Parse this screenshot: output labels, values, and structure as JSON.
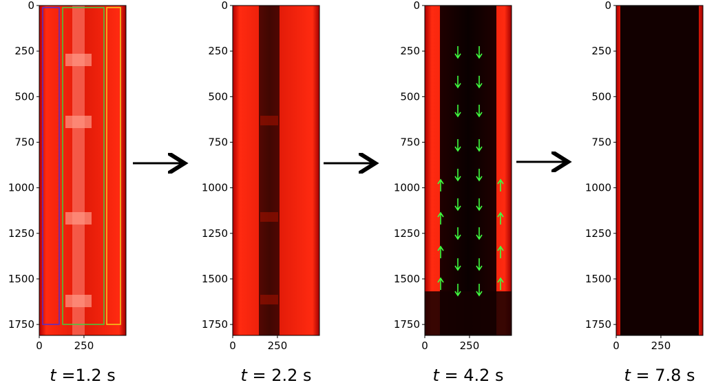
{
  "axes": {
    "ylim": [
      0,
      1810
    ],
    "xlim": [
      0,
      485
    ],
    "yticks": [
      0,
      250,
      500,
      750,
      1000,
      1250,
      1500,
      1750
    ],
    "xticks": [
      0,
      250
    ]
  },
  "panels": [
    {
      "variable": "t",
      "caption": " =1.2 s"
    },
    {
      "variable": "t",
      "caption": " = 2.2 s"
    },
    {
      "variable": "t",
      "caption": " = 4.2 s"
    },
    {
      "variable": "t",
      "caption": " = 7.8 s"
    }
  ]
}
